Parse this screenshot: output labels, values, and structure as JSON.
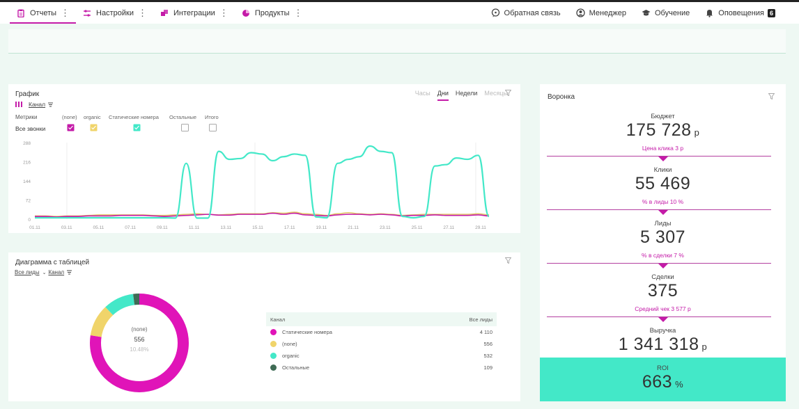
{
  "nav": {
    "left": [
      {
        "label": "Отчеты",
        "icon": "clipboard-icon"
      },
      {
        "label": "Настройки",
        "icon": "sliders-icon"
      },
      {
        "label": "Интеграции",
        "icon": "puzzle-icon"
      },
      {
        "label": "Продукты",
        "icon": "pie-icon"
      }
    ],
    "right": [
      {
        "label": "Обратная связь",
        "icon": "feedback-icon"
      },
      {
        "label": "Менеджер",
        "icon": "manager-icon"
      },
      {
        "label": "Обучение",
        "icon": "graduation-cap-icon"
      },
      {
        "label": "Оповещения",
        "icon": "bell-icon",
        "badge": "6"
      }
    ]
  },
  "graph": {
    "title": "График",
    "group_label": "Канал",
    "metrics_label": "Метрики",
    "row_label": "Все звонки",
    "legend": [
      "(none)",
      "organic",
      "Статические номера",
      "Остальные",
      "Итого"
    ],
    "legend_checked": [
      true,
      true,
      true,
      false,
      false
    ],
    "tabs": [
      "Часы",
      "Дни",
      "Недели",
      "Месяцы"
    ],
    "active_tab": "Дни"
  },
  "chart_data": {
    "type": "line",
    "y_ticks": [
      "0",
      "72",
      "144",
      "216",
      "288"
    ],
    "x_ticks": [
      "01.11",
      "03.11",
      "05.11",
      "07.11",
      "09.11",
      "11.11",
      "13.11",
      "15.11",
      "17.11",
      "19.11",
      "21.11",
      "23.11",
      "25.11",
      "27.11",
      "29.11"
    ],
    "ylim": [
      0,
      288
    ],
    "series": [
      {
        "name": "Статические номера",
        "color": "#43e8c8",
        "values": [
          5,
          5,
          5,
          5,
          5,
          5,
          5,
          5,
          5,
          5,
          5,
          5,
          5,
          4,
          210,
          4,
          4,
          255,
          225,
          228,
          250,
          245,
          220,
          235,
          245,
          240,
          8,
          5,
          210,
          225,
          235,
          275,
          255,
          250,
          10,
          5,
          10,
          200,
          205,
          230,
          225,
          240,
          10
        ]
      },
      {
        "name": "(none)",
        "color": "#c41ba8",
        "values": [
          10,
          10,
          8,
          10,
          10,
          12,
          12,
          12,
          14,
          14,
          14,
          12,
          10,
          12,
          14,
          16,
          18,
          15,
          15,
          18,
          18,
          18,
          22,
          18,
          22,
          16,
          14,
          12,
          16,
          18,
          18,
          16,
          18,
          16,
          12,
          14,
          14,
          16,
          14,
          14,
          14,
          16,
          12
        ]
      },
      {
        "name": "organic",
        "color": "#e2c766",
        "values": [
          12,
          12,
          10,
          12,
          12,
          14,
          16,
          16,
          16,
          16,
          16,
          14,
          14,
          16,
          18,
          20,
          18,
          16,
          18,
          20,
          20,
          20,
          24,
          22,
          26,
          20,
          18,
          14,
          20,
          24,
          20,
          18,
          20,
          18,
          14,
          16,
          18,
          18,
          18,
          18,
          18,
          20,
          16
        ]
      }
    ]
  },
  "funnel": {
    "title": "Воронка",
    "stages": [
      {
        "label": "Бюджет",
        "value": "175 728",
        "unit": "р",
        "sub": "Цена клика 3 р"
      },
      {
        "label": "Клики",
        "value": "55 469",
        "unit": "",
        "sub": "% в лиды 10 %"
      },
      {
        "label": "Лиды",
        "value": "5 307",
        "unit": "",
        "sub": "% в сделки 7 %"
      },
      {
        "label": "Сделки",
        "value": "375",
        "unit": "",
        "sub": "Средний чек 3 577 р"
      },
      {
        "label": "Выручка",
        "value": "1 341 318",
        "unit": "р",
        "sub": ""
      }
    ],
    "roi": {
      "label": "ROI",
      "value": "663",
      "unit": "%"
    }
  },
  "diagram": {
    "title": "Диаграмма с таблицей",
    "selector": "Все лиды",
    "group_label": "Канал",
    "center_label": "(none)",
    "center_value": "556",
    "center_pct": "10.48%",
    "table_head": [
      "Канал",
      "Все лиды"
    ],
    "rows": [
      {
        "name": "Статические номера",
        "value": "4 110",
        "color": "#e014b8"
      },
      {
        "name": "(none)",
        "value": "556",
        "color": "#f0d46a"
      },
      {
        "name": "organic",
        "value": "532",
        "color": "#43e8c8"
      },
      {
        "name": "Остальные",
        "value": "109",
        "color": "#3f6b55"
      }
    ],
    "donut": [
      4110,
      556,
      532,
      109
    ]
  }
}
